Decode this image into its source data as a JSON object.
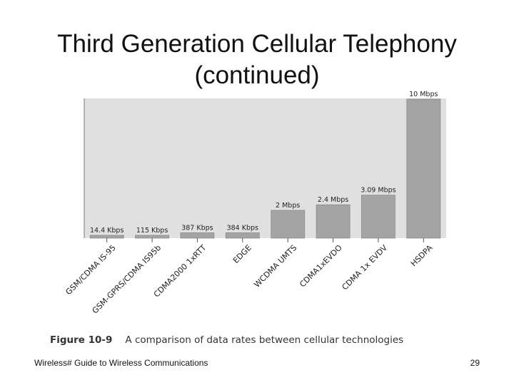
{
  "slide": {
    "title_line1": "Third Generation Cellular Telephony",
    "title_line2": "(continued)"
  },
  "caption": {
    "figure_number": "Figure 10-9",
    "text": "A comparison of data rates between cellular technologies"
  },
  "footer": {
    "left": "Wireless# Guide to Wireless Communications",
    "page_number": "29"
  },
  "colors": {
    "plot_background": "#e0e0e0",
    "bar_fill": "#a4a4a4",
    "bar_stroke": "#8a8a8a",
    "label_text": "#222222"
  },
  "chart_data": {
    "type": "bar",
    "title": "",
    "xlabel": "",
    "ylabel": "",
    "ylim": [
      0,
      10
    ],
    "grid": false,
    "categories": [
      "GSM/CDMA IS-95",
      "GSM-GPRS/CDMA IS95b",
      "CDMA2000 1xRTT",
      "EDGE",
      "WCDMA UMTS",
      "CDMA1xEVDO",
      "CDMA 1x EVDV",
      "HSDPA"
    ],
    "values": [
      0.0144,
      0.115,
      0.387,
      0.384,
      2,
      2.4,
      3.09,
      10
    ],
    "value_unit": "Mbps",
    "data_labels": [
      "14.4 Kbps",
      "115 Kbps",
      "387 Kbps",
      "384 Kbps",
      "2 Mbps",
      "2.4 Mbps",
      "3.09 Mbps",
      "10 Mbps"
    ]
  }
}
